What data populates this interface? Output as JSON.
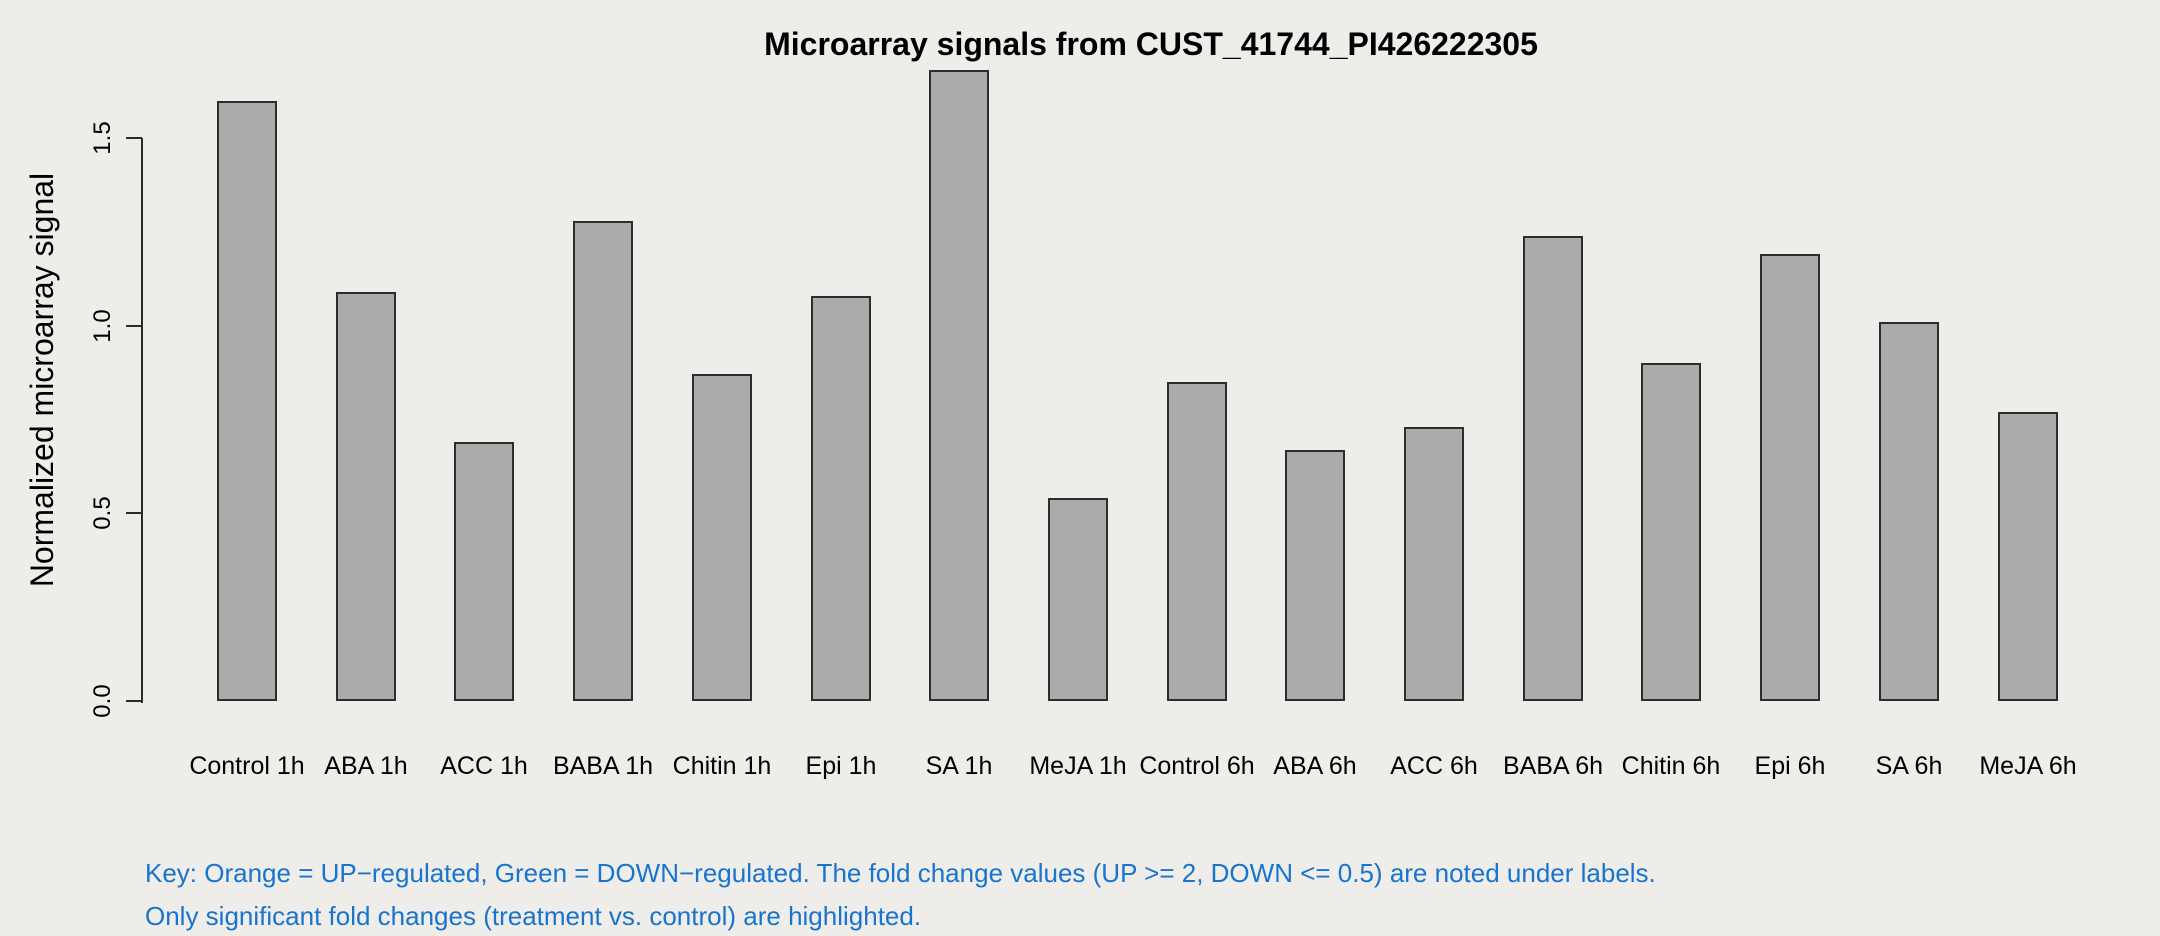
{
  "chart_data": {
    "type": "bar",
    "title": "Microarray signals from CUST_41744_PI426222305",
    "xlabel": "",
    "ylabel": "Normalized microarray signal",
    "ylim": [
      0,
      1.5
    ],
    "yticks": [
      0.0,
      0.5,
      1.0,
      1.5
    ],
    "ytick_labels": [
      "0.0",
      "0.5",
      "1.0",
      "1.5"
    ],
    "grid": false,
    "legend_position": "none",
    "bar_color": "#ABABAB",
    "bar_border_color": "#2D2D2D",
    "categories": [
      "Control 1h",
      "ABA 1h",
      "ACC 1h",
      "BABA 1h",
      "Chitin 1h",
      "Epi 1h",
      "SA 1h",
      "MeJA 1h",
      "Control 6h",
      "ABA 6h",
      "ACC 6h",
      "BABA 6h",
      "Chitin 6h",
      "Epi 6h",
      "SA 6h",
      "MeJA 6h"
    ],
    "values": [
      1.6,
      1.09,
      0.69,
      1.28,
      0.87,
      1.08,
      1.68,
      0.54,
      0.85,
      0.67,
      0.73,
      1.24,
      0.9,
      1.19,
      1.01,
      0.77
    ]
  },
  "annotation": {
    "line1": "Key: Orange = UP−regulated, Green = DOWN−regulated. The fold change values (UP >= 2, DOWN <= 0.5) are noted under labels.",
    "line2": "Only significant fold changes (treatment vs. control) are highlighted.",
    "color": "#1874CD"
  },
  "colors": {
    "background": "#EEEDEA",
    "axis": "#2B2B2B",
    "text": "#000000"
  }
}
